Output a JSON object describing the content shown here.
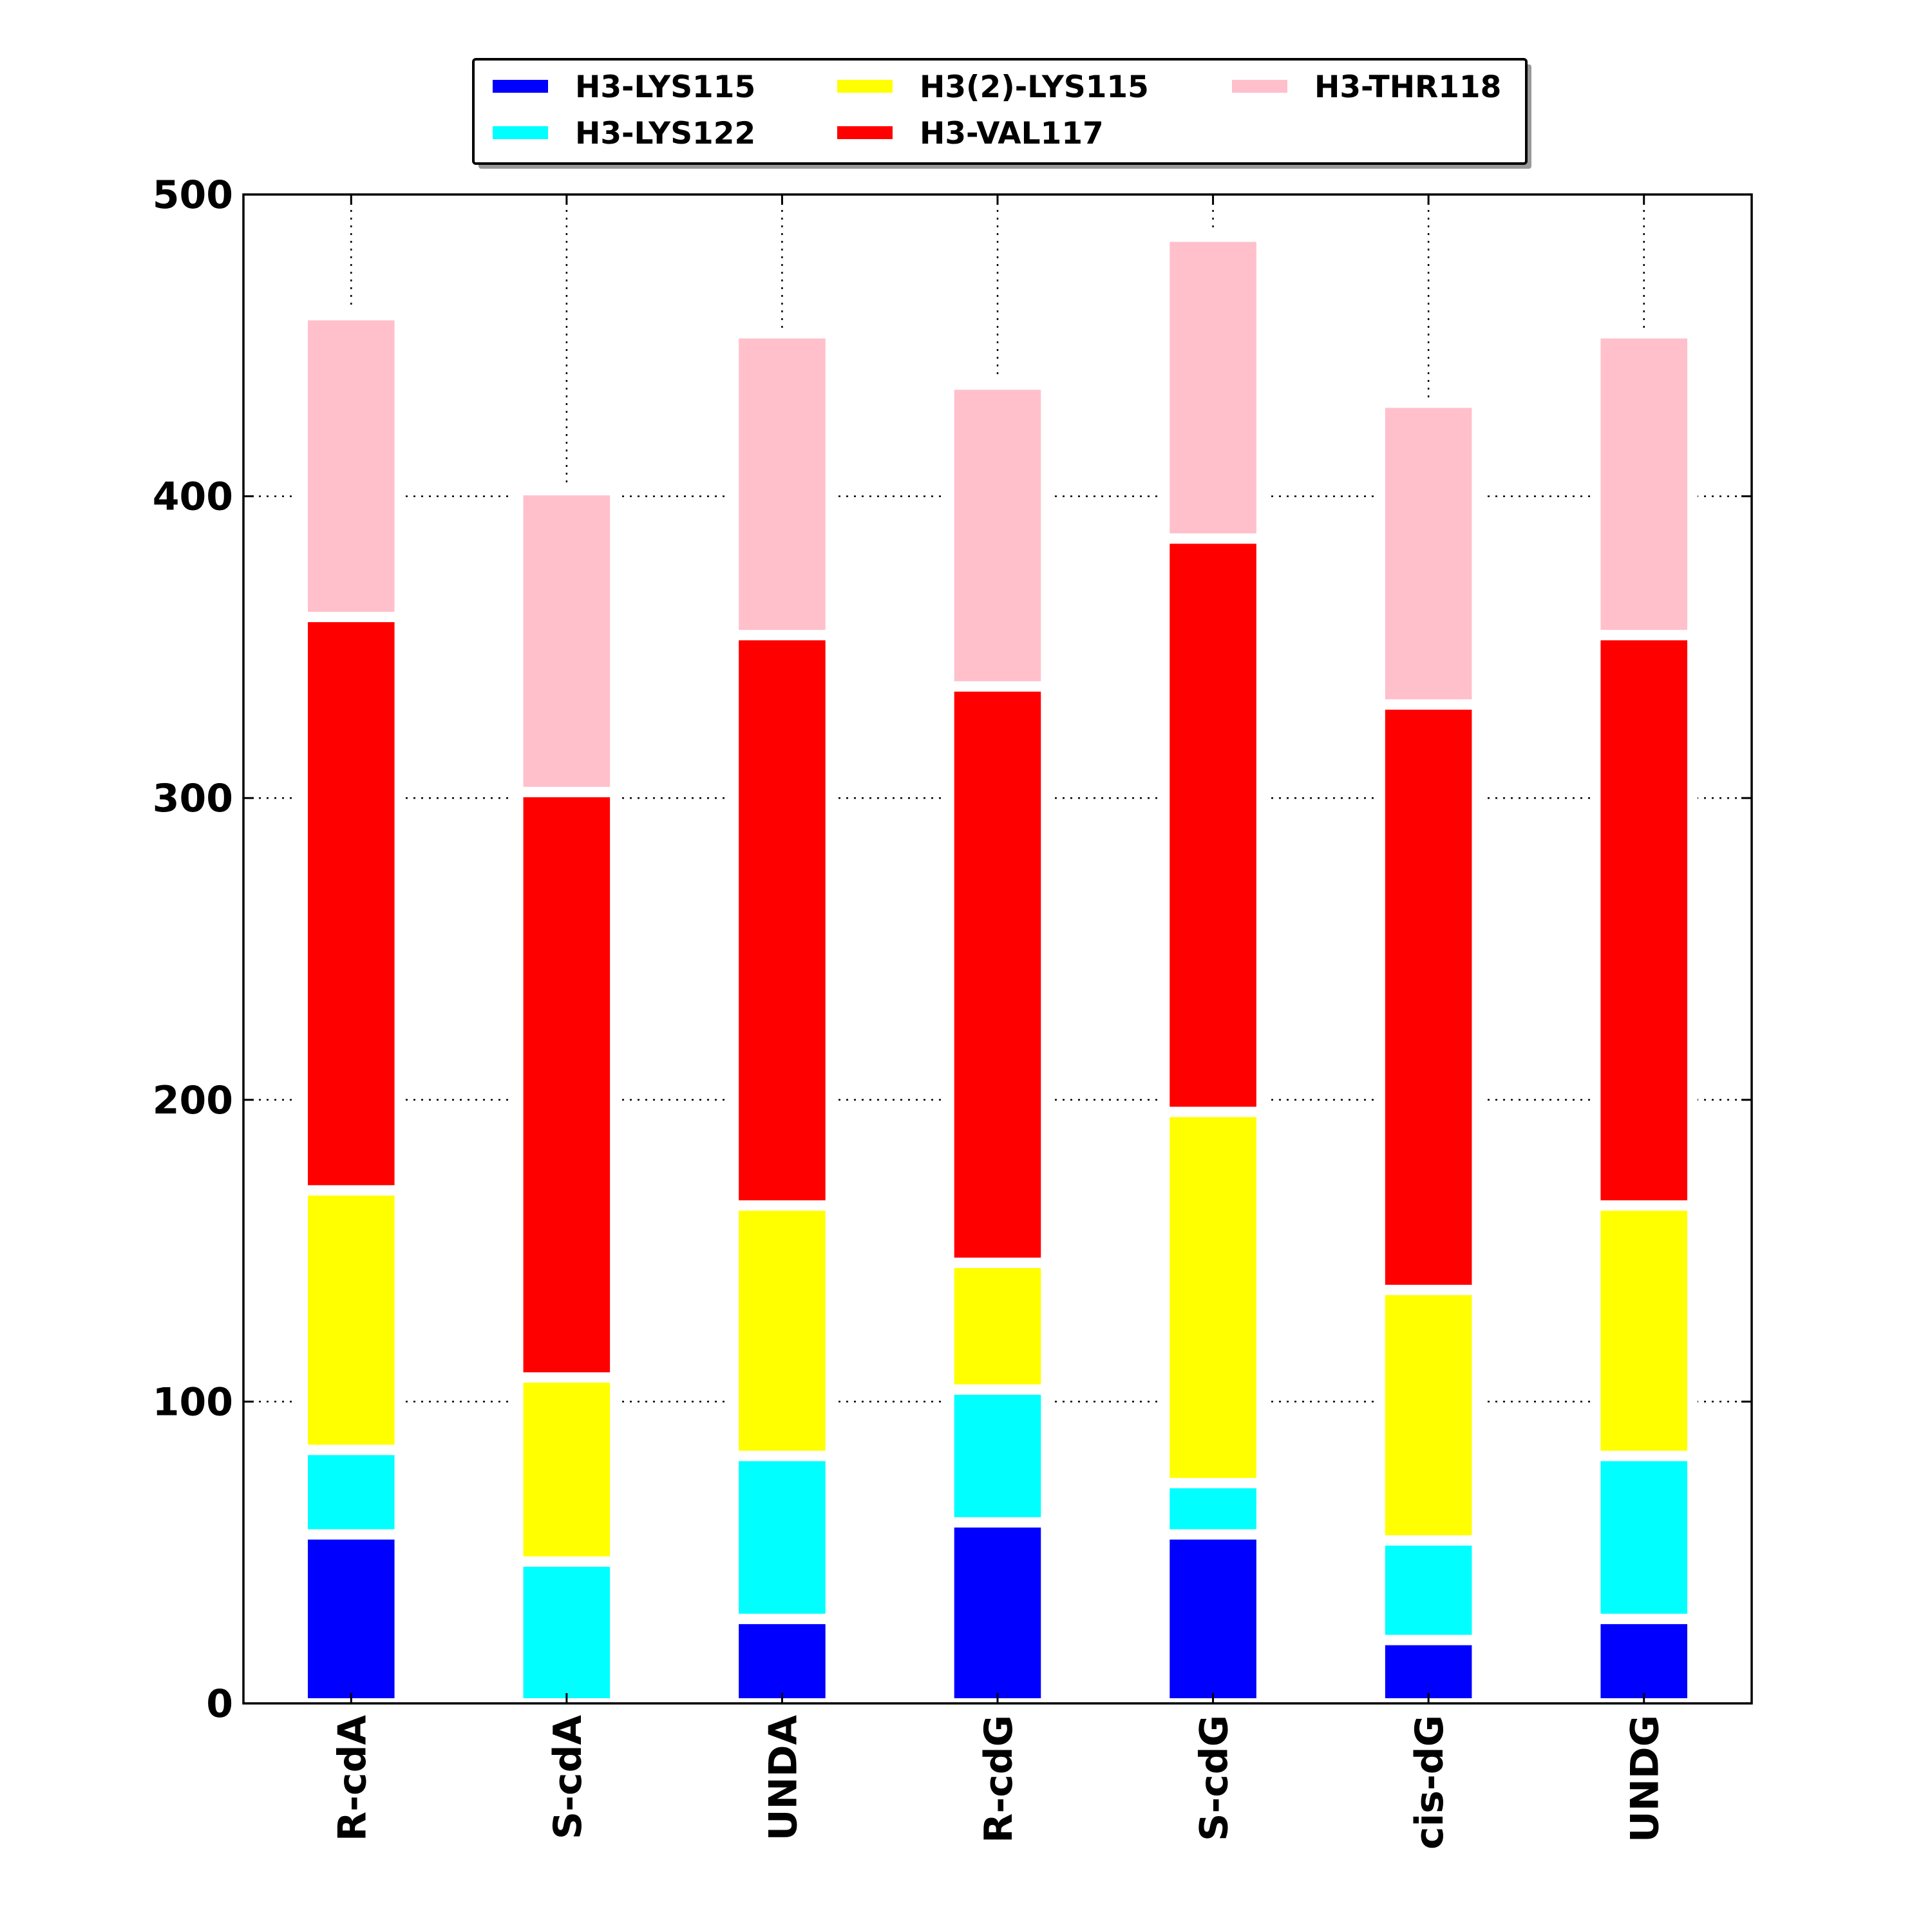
{
  "chart_data": {
    "type": "bar",
    "stacked": true,
    "categories": [
      "R-cdA",
      "S-cdA",
      "UNDA",
      "R-cdG",
      "S-cdG",
      "cis-dG",
      "UNDG"
    ],
    "series": [
      {
        "name": "H3-LYS115",
        "color": "#0000ff",
        "values": [
          56,
          0,
          28,
          60,
          56,
          21,
          28
        ]
      },
      {
        "name": "H3-LYS122",
        "color": "#00ffff",
        "values": [
          28,
          47,
          54,
          44,
          17,
          33,
          54
        ]
      },
      {
        "name": "H3(2)-LYS115",
        "color": "#ffff00",
        "values": [
          86,
          61,
          83,
          42,
          123,
          83,
          83
        ]
      },
      {
        "name": "H3-VAL117",
        "color": "#ff0000",
        "values": [
          190,
          194,
          189,
          191,
          190,
          194,
          189
        ]
      },
      {
        "name": "H3-THR118",
        "color": "#ffc0cb",
        "values": [
          100,
          100,
          100,
          100,
          100,
          100,
          100
        ]
      }
    ],
    "title": "",
    "xlabel": "",
    "ylabel": "",
    "ylim": [
      0,
      500
    ],
    "yticks": [
      "0",
      "100",
      "200",
      "300",
      "400",
      "500"
    ],
    "grid": true,
    "legend_position": "top-center, outside plot",
    "legend_columns": 3
  }
}
